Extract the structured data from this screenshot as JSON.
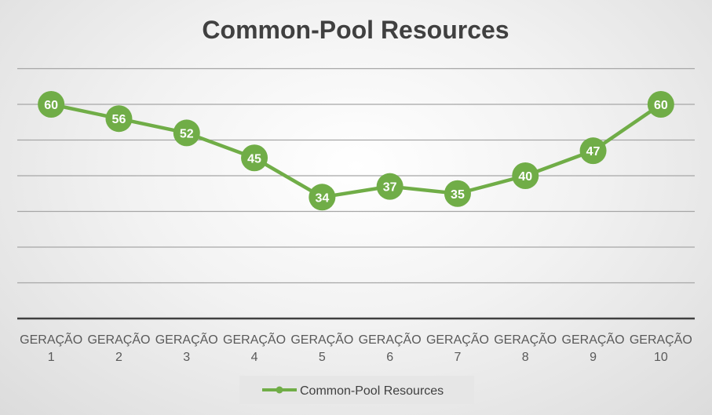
{
  "chart_data": {
    "type": "line",
    "title": "Common-Pool Resources",
    "categories": [
      "GERAÇÃO 1",
      "GERAÇÃO 2",
      "GERAÇÃO 3",
      "GERAÇÃO 4",
      "GERAÇÃO 5",
      "GERAÇÃO 6",
      "GERAÇÃO 7",
      "GERAÇÃO 8",
      "GERAÇÃO 9",
      "GERAÇÃO 10"
    ],
    "series": [
      {
        "name": "Common-Pool Resources",
        "values": [
          60,
          56,
          52,
          45,
          34,
          37,
          35,
          40,
          47,
          60
        ],
        "color": "#70ad47"
      }
    ],
    "ylim": [
      0,
      70
    ],
    "ystep": 10,
    "grid": true,
    "legend_position": "bottom",
    "colors": {
      "gridline": "#a6a6a6",
      "axis": "#404040",
      "title": "#404040",
      "tick_label": "#595959",
      "marker_label": "#ffffff"
    }
  }
}
